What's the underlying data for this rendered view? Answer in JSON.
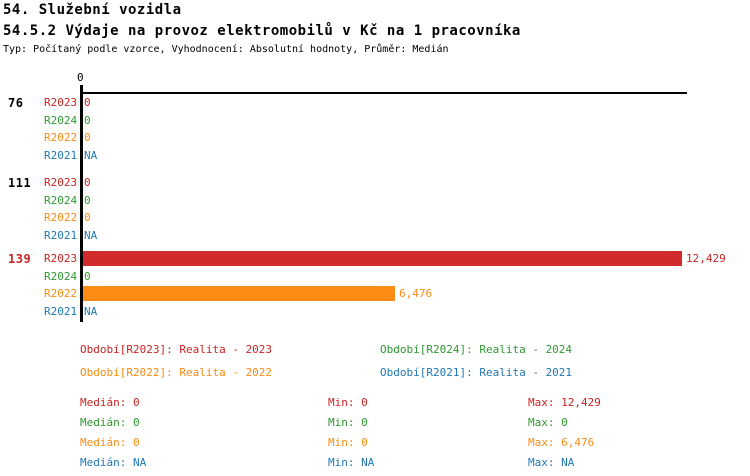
{
  "header": {
    "title": "54. Služební vozidla",
    "subtitle": "54.5.2 Výdaje na provoz elektromobilů v Kč na 1 pracovníka",
    "meta": "Typ: Počítaný podle vzorce, Vyhodnocení: Absolutní hodnoty, Průměr: Medián"
  },
  "colors": {
    "r2023": "#cc2222",
    "r2024": "#2e9732",
    "r2022": "#f98c12",
    "r2021": "#1f77b4",
    "bar_r2023": "#d22b2b",
    "bar_r2022": "#fb8b13",
    "axis": "#000000"
  },
  "chart_data": {
    "type": "bar",
    "orientation": "horizontal",
    "title": "54.5.2 Výdaje na provoz elektromobilů v Kč na 1 pracovníka",
    "xlabel": "",
    "ylabel": "",
    "axis_ticks": [
      "0"
    ],
    "xlim": [
      0,
      12595
    ],
    "grid": false,
    "series_order": [
      "R2023",
      "R2024",
      "R2022",
      "R2021"
    ],
    "groups": [
      {
        "label": "76",
        "rows": [
          {
            "series": "R2023",
            "value": 0,
            "display": "0"
          },
          {
            "series": "R2024",
            "value": 0,
            "display": "0"
          },
          {
            "series": "R2022",
            "value": 0,
            "display": "0"
          },
          {
            "series": "R2021",
            "value": null,
            "display": "NA"
          }
        ]
      },
      {
        "label": "111",
        "rows": [
          {
            "series": "R2023",
            "value": 0,
            "display": "0"
          },
          {
            "series": "R2024",
            "value": 0,
            "display": "0"
          },
          {
            "series": "R2022",
            "value": 0,
            "display": "0"
          },
          {
            "series": "R2021",
            "value": null,
            "display": "NA"
          }
        ]
      },
      {
        "label": "139",
        "rows": [
          {
            "series": "R2023",
            "value": 12429,
            "display": "12,429"
          },
          {
            "series": "R2024",
            "value": 0,
            "display": "0"
          },
          {
            "series": "R2022",
            "value": 6476,
            "display": "6,476"
          },
          {
            "series": "R2021",
            "value": null,
            "display": "NA"
          }
        ]
      }
    ]
  },
  "legend": {
    "items": [
      {
        "text": "Období[R2023]: Realita - 2023"
      },
      {
        "text": "Období[R2024]: Realita - 2024"
      },
      {
        "text": "Období[R2022]: Realita - 2022"
      },
      {
        "text": "Období[R2021]: Realita - 2021"
      }
    ]
  },
  "stats": {
    "rows": [
      {
        "median": "Medián: 0",
        "min": "Min: 0",
        "max": "Max: 12,429"
      },
      {
        "median": "Medián: 0",
        "min": "Min: 0",
        "max": "Max: 0"
      },
      {
        "median": "Medián: 0",
        "min": "Min: 0",
        "max": "Max: 6,476"
      },
      {
        "median": "Medián: NA",
        "min": "Min: NA",
        "max": "Max: NA"
      }
    ]
  }
}
